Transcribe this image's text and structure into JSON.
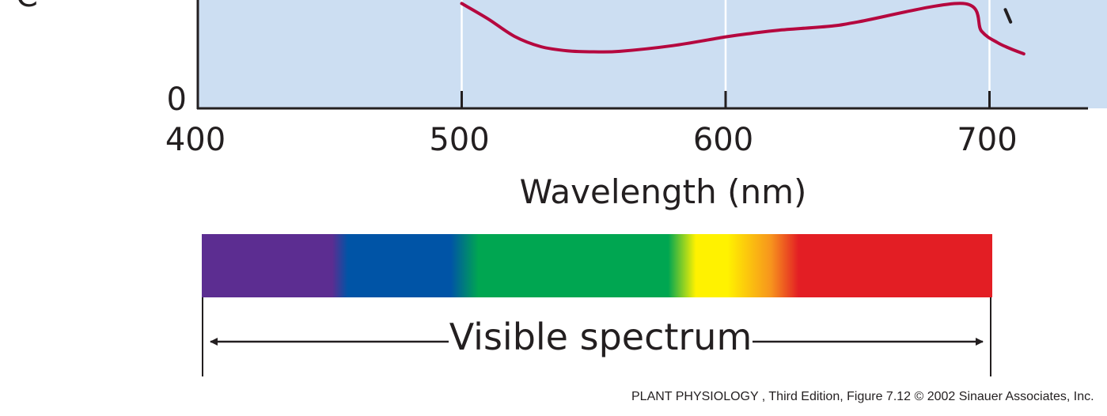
{
  "chart_data": {
    "type": "line",
    "title": "",
    "xlabel": "Wavelength (nm)",
    "ylabel_partial_glyph": "C",
    "x_ticks": [
      400,
      500,
      600,
      700
    ],
    "y_ticks": [
      0
    ],
    "xlim": [
      400,
      737
    ],
    "ylim": [
      0,
      1
    ],
    "grid": true,
    "series": [
      {
        "color": "#b5083f",
        "x": [
          500,
          510,
          520,
          530,
          540,
          550,
          560,
          580,
          600,
          610,
          620,
          640,
          650,
          690,
          697,
          703,
          708,
          713
        ],
        "y": [
          1.02,
          0.87,
          0.7,
          0.6,
          0.56,
          0.55,
          0.555,
          0.61,
          0.695,
          0.73,
          0.76,
          0.8,
          0.84,
          1.02,
          0.75,
          0.64,
          0.58,
          0.53
        ]
      },
      {
        "color": "#231f20",
        "x": [
          706,
          708
        ],
        "y": [
          0.96,
          0.84
        ]
      }
    ],
    "colors": {
      "plot_background": "#ccdef2",
      "gridline": "#ffffff",
      "axis": "#231f20"
    }
  },
  "spectrum": {
    "label": "Visible spectrum",
    "range_nm": [
      400,
      700
    ],
    "bands": [
      {
        "name": "violet",
        "color": "#5c2d91"
      },
      {
        "name": "blue",
        "color": "#0054a6"
      },
      {
        "name": "green",
        "color": "#00a651"
      },
      {
        "name": "yellow",
        "color": "#fff200"
      },
      {
        "name": "orange",
        "color": "#f7941d"
      },
      {
        "name": "red",
        "color": "#e31e24"
      }
    ]
  },
  "credit": "PLANT PHYSIOLOGY , Third Edition, Figure 7.12  © 2002 Sinauer Associates, Inc."
}
